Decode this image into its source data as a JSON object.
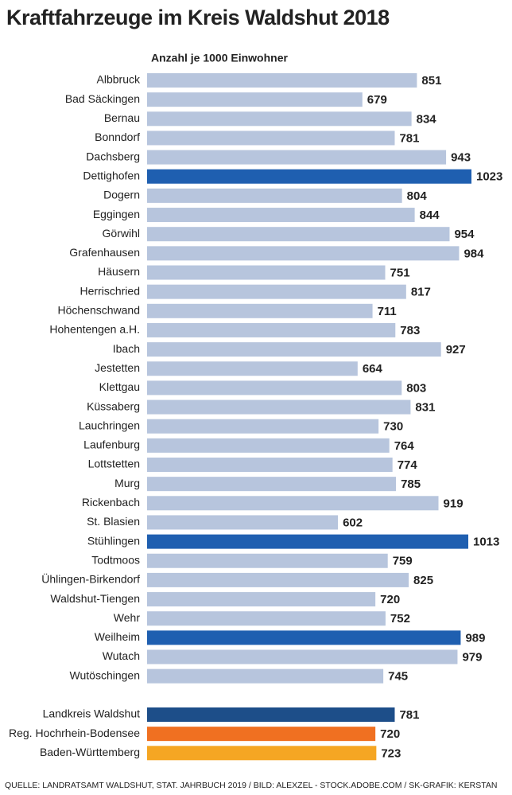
{
  "chart_data": [
    {
      "type": "barh",
      "title": "Kraftfahrzeuge im Kreis Waldshut 2018",
      "subtitle": "Anzahl je 1000 Einwohner",
      "source": "QUELLE: LANDRATSAMT WALDSHUT, STAT.  JAHRBUCH 2019 / BILD: ALEXZEL - STOCK.ADOBE.COM / SK-GRAFIK: KERSTAN",
      "categories": [
        "Albbruck",
        "Bad Säckingen",
        "Bernau",
        "Bonndorf",
        "Dachsberg",
        "Dettighofen",
        "Dogern",
        "Eggingen",
        "Görwihl",
        "Grafenhausen",
        "Häusern",
        "Herrischried",
        "Höchenschwand",
        "Hohentengen a.H.",
        "Ibach",
        "Jestetten",
        "Klettgau",
        "Küssaberg",
        "Lauchringen",
        "Laufenburg",
        "Lottstetten",
        "Murg",
        "Rickenbach",
        "St. Blasien",
        "Stühlingen",
        "Todtmoos",
        "Ühlingen-Birkendorf",
        "Waldshut-Tiengen",
        "Wehr",
        "Weilheim",
        "Wutach",
        "Wutöschingen"
      ],
      "values": [
        851,
        679,
        834,
        781,
        943,
        1023,
        804,
        844,
        954,
        984,
        751,
        817,
        711,
        783,
        927,
        664,
        803,
        831,
        730,
        764,
        774,
        785,
        919,
        602,
        1013,
        759,
        825,
        720,
        752,
        989,
        979,
        745
      ],
      "colors": [
        "#b7c5dd",
        "#b7c5dd",
        "#b7c5dd",
        "#b7c5dd",
        "#b7c5dd",
        "#1f5fb0",
        "#b7c5dd",
        "#b7c5dd",
        "#b7c5dd",
        "#b7c5dd",
        "#b7c5dd",
        "#b7c5dd",
        "#b7c5dd",
        "#b7c5dd",
        "#b7c5dd",
        "#b7c5dd",
        "#b7c5dd",
        "#b7c5dd",
        "#b7c5dd",
        "#b7c5dd",
        "#b7c5dd",
        "#b7c5dd",
        "#b7c5dd",
        "#b7c5dd",
        "#1f5fb0",
        "#b7c5dd",
        "#b7c5dd",
        "#b7c5dd",
        "#b7c5dd",
        "#1f5fb0",
        "#b7c5dd",
        "#b7c5dd"
      ]
    },
    {
      "type": "barh",
      "categories": [
        "Landkreis Waldshut",
        "Reg. Hochrhein-Bodensee",
        "Baden-Württemberg"
      ],
      "values": [
        781,
        720,
        723
      ],
      "colors": [
        "#1d4e89",
        "#f07021",
        "#f5a623"
      ]
    }
  ]
}
